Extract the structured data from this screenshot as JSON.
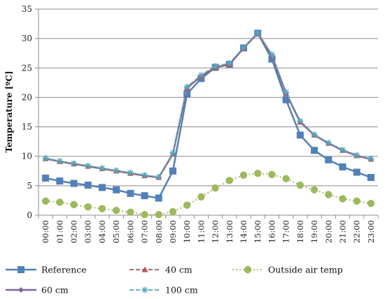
{
  "chart_data": {
    "type": "line",
    "title": "",
    "xlabel": "",
    "ylabel": "Temperature [ºC]",
    "ylim": [
      0,
      35
    ],
    "yticks": [
      0,
      5,
      10,
      15,
      20,
      25,
      30,
      35
    ],
    "grid": true,
    "legend_position": "bottom",
    "categories": [
      "00:00",
      "01:00",
      "02:00",
      "03:00",
      "04:00",
      "05:00",
      "06:00",
      "07:00",
      "08:00",
      "09:00",
      "10:00",
      "11:00",
      "12:00",
      "13:00",
      "14:00",
      "15:00",
      "16:00",
      "17:00",
      "18:00",
      "19:00",
      "20:00",
      "21:00",
      "22:00",
      "23:00"
    ],
    "series": [
      {
        "name": "Reference",
        "color": "#4f81bd",
        "marker": "square",
        "dash": "solid",
        "values": [
          6.3,
          5.8,
          5.4,
          5.1,
          4.7,
          4.3,
          3.7,
          3.3,
          2.9,
          7.5,
          20.6,
          23.2,
          25.1,
          25.6,
          28.4,
          30.9,
          26.5,
          19.6,
          13.6,
          11.0,
          9.4,
          8.2,
          7.3,
          6.4
        ]
      },
      {
        "name": "40 cm",
        "color": "#c0504d",
        "marker": "triangle",
        "dash": "dashed",
        "values": [
          9.6,
          9.1,
          8.7,
          8.3,
          7.9,
          7.5,
          7.1,
          6.7,
          6.4,
          10.4,
          21.6,
          23.6,
          25.1,
          25.6,
          28.4,
          30.9,
          27.1,
          20.7,
          15.8,
          13.6,
          12.2,
          11.0,
          10.1,
          9.5
        ]
      },
      {
        "name": "Outside air temp",
        "color": "#9bbb59",
        "marker": "circle",
        "dash": "dotted",
        "values": [
          2.4,
          2.2,
          1.8,
          1.4,
          1.1,
          0.8,
          0.5,
          0.1,
          0.1,
          0.6,
          1.7,
          3.1,
          4.6,
          5.9,
          6.8,
          7.1,
          6.9,
          6.2,
          5.1,
          4.3,
          3.5,
          2.8,
          2.4,
          2.0
        ]
      },
      {
        "name": "60 cm",
        "color": "#8064a2",
        "marker": "diamond",
        "dash": "solid",
        "values": [
          9.6,
          9.1,
          8.7,
          8.3,
          7.9,
          7.5,
          7.1,
          6.7,
          6.4,
          10.4,
          21.6,
          23.6,
          25.1,
          25.6,
          28.4,
          30.9,
          27.1,
          20.7,
          15.8,
          13.6,
          12.2,
          11.0,
          10.1,
          9.5
        ]
      },
      {
        "name": "100 cm",
        "color": "#4bacc6",
        "marker": "star",
        "dash": "dashed",
        "values": [
          9.7,
          9.2,
          8.8,
          8.4,
          8.0,
          7.6,
          7.2,
          6.8,
          6.5,
          10.6,
          21.8,
          23.8,
          25.3,
          25.8,
          28.5,
          31.0,
          27.3,
          20.9,
          16.0,
          13.7,
          12.3,
          11.1,
          10.2,
          9.6
        ]
      }
    ]
  }
}
